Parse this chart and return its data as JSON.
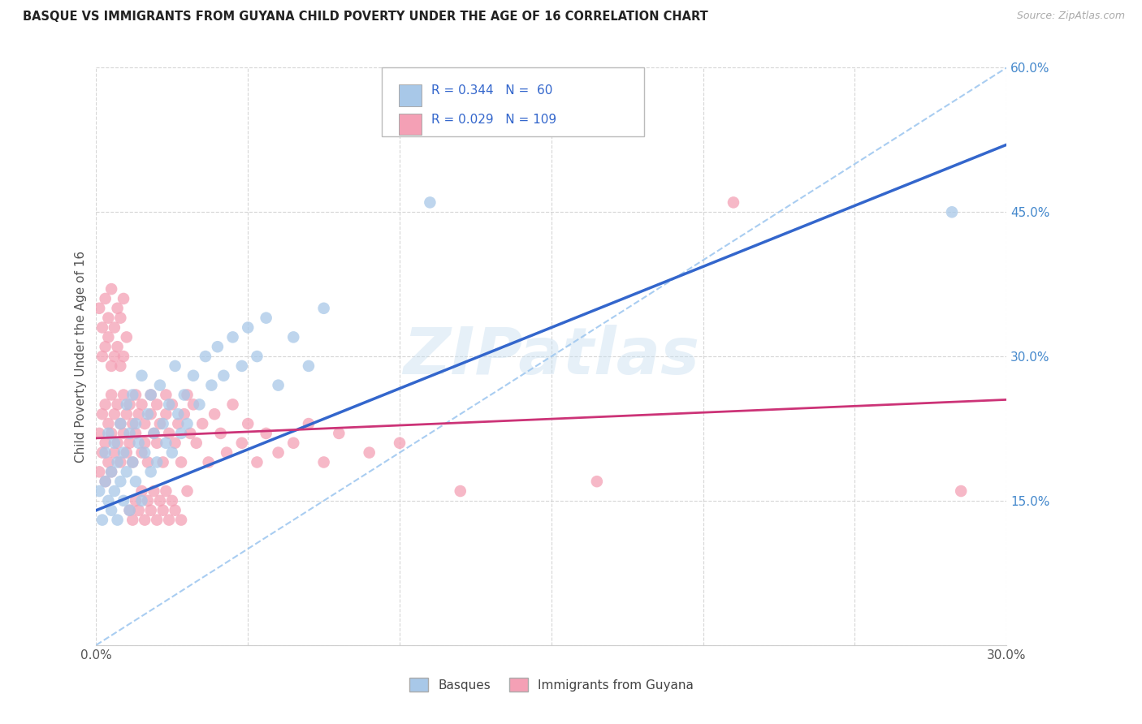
{
  "title": "BASQUE VS IMMIGRANTS FROM GUYANA CHILD POVERTY UNDER THE AGE OF 16 CORRELATION CHART",
  "source": "Source: ZipAtlas.com",
  "ylabel": "Child Poverty Under the Age of 16",
  "xlim": [
    0.0,
    0.3
  ],
  "ylim": [
    0.0,
    0.6
  ],
  "xticks": [
    0.0,
    0.05,
    0.1,
    0.15,
    0.2,
    0.25,
    0.3
  ],
  "yticks": [
    0.0,
    0.15,
    0.3,
    0.45,
    0.6
  ],
  "watermark": "ZIPatlas",
  "blue_R": 0.344,
  "blue_N": 60,
  "pink_R": 0.029,
  "pink_N": 109,
  "blue_color": "#a8c8e8",
  "pink_color": "#f4a0b5",
  "blue_line_color": "#3366cc",
  "pink_line_color": "#cc3377",
  "dashed_line_color": "#a0c8f0",
  "legend_label_blue": "Basques",
  "legend_label_pink": "Immigrants from Guyana",
  "blue_line_x0": 0.0,
  "blue_line_y0": 0.14,
  "blue_line_x1": 0.15,
  "blue_line_y1": 0.33,
  "pink_line_x0": 0.0,
  "pink_line_y0": 0.215,
  "pink_line_x1": 0.3,
  "pink_line_y1": 0.255,
  "blue_scatter_x": [
    0.001,
    0.002,
    0.003,
    0.003,
    0.004,
    0.004,
    0.005,
    0.005,
    0.006,
    0.006,
    0.007,
    0.007,
    0.008,
    0.008,
    0.009,
    0.009,
    0.01,
    0.01,
    0.011,
    0.011,
    0.012,
    0.012,
    0.013,
    0.013,
    0.014,
    0.015,
    0.015,
    0.016,
    0.017,
    0.018,
    0.018,
    0.019,
    0.02,
    0.021,
    0.022,
    0.023,
    0.024,
    0.025,
    0.026,
    0.027,
    0.028,
    0.029,
    0.03,
    0.032,
    0.034,
    0.036,
    0.038,
    0.04,
    0.042,
    0.045,
    0.048,
    0.05,
    0.053,
    0.056,
    0.06,
    0.065,
    0.07,
    0.075,
    0.11,
    0.282
  ],
  "blue_scatter_y": [
    0.16,
    0.13,
    0.17,
    0.2,
    0.15,
    0.22,
    0.14,
    0.18,
    0.16,
    0.21,
    0.13,
    0.19,
    0.17,
    0.23,
    0.15,
    0.2,
    0.18,
    0.25,
    0.14,
    0.22,
    0.19,
    0.26,
    0.17,
    0.23,
    0.21,
    0.15,
    0.28,
    0.2,
    0.24,
    0.18,
    0.26,
    0.22,
    0.19,
    0.27,
    0.23,
    0.21,
    0.25,
    0.2,
    0.29,
    0.24,
    0.22,
    0.26,
    0.23,
    0.28,
    0.25,
    0.3,
    0.27,
    0.31,
    0.28,
    0.32,
    0.29,
    0.33,
    0.3,
    0.34,
    0.27,
    0.32,
    0.29,
    0.35,
    0.46,
    0.45
  ],
  "pink_scatter_x": [
    0.001,
    0.001,
    0.002,
    0.002,
    0.003,
    0.003,
    0.003,
    0.004,
    0.004,
    0.005,
    0.005,
    0.005,
    0.006,
    0.006,
    0.007,
    0.007,
    0.008,
    0.008,
    0.009,
    0.009,
    0.01,
    0.01,
    0.011,
    0.011,
    0.012,
    0.012,
    0.013,
    0.013,
    0.014,
    0.015,
    0.015,
    0.016,
    0.016,
    0.017,
    0.018,
    0.018,
    0.019,
    0.02,
    0.02,
    0.021,
    0.022,
    0.023,
    0.023,
    0.024,
    0.025,
    0.026,
    0.027,
    0.028,
    0.029,
    0.03,
    0.031,
    0.032,
    0.033,
    0.035,
    0.037,
    0.039,
    0.041,
    0.043,
    0.045,
    0.048,
    0.05,
    0.053,
    0.056,
    0.06,
    0.065,
    0.07,
    0.075,
    0.08,
    0.09,
    0.1,
    0.001,
    0.002,
    0.003,
    0.004,
    0.005,
    0.006,
    0.007,
    0.008,
    0.009,
    0.01,
    0.011,
    0.012,
    0.013,
    0.014,
    0.015,
    0.016,
    0.017,
    0.018,
    0.019,
    0.02,
    0.021,
    0.022,
    0.023,
    0.024,
    0.025,
    0.026,
    0.028,
    0.03,
    0.12,
    0.165,
    0.002,
    0.003,
    0.004,
    0.005,
    0.006,
    0.007,
    0.008,
    0.009,
    0.285,
    0.21
  ],
  "pink_scatter_y": [
    0.22,
    0.18,
    0.24,
    0.2,
    0.25,
    0.21,
    0.17,
    0.23,
    0.19,
    0.26,
    0.22,
    0.18,
    0.24,
    0.2,
    0.25,
    0.21,
    0.23,
    0.19,
    0.26,
    0.22,
    0.24,
    0.2,
    0.25,
    0.21,
    0.23,
    0.19,
    0.26,
    0.22,
    0.24,
    0.2,
    0.25,
    0.21,
    0.23,
    0.19,
    0.24,
    0.26,
    0.22,
    0.25,
    0.21,
    0.23,
    0.19,
    0.24,
    0.26,
    0.22,
    0.25,
    0.21,
    0.23,
    0.19,
    0.24,
    0.26,
    0.22,
    0.25,
    0.21,
    0.23,
    0.19,
    0.24,
    0.22,
    0.2,
    0.25,
    0.21,
    0.23,
    0.19,
    0.22,
    0.2,
    0.21,
    0.23,
    0.19,
    0.22,
    0.2,
    0.21,
    0.35,
    0.33,
    0.36,
    0.34,
    0.37,
    0.33,
    0.35,
    0.34,
    0.36,
    0.32,
    0.14,
    0.13,
    0.15,
    0.14,
    0.16,
    0.13,
    0.15,
    0.14,
    0.16,
    0.13,
    0.15,
    0.14,
    0.16,
    0.13,
    0.15,
    0.14,
    0.13,
    0.16,
    0.16,
    0.17,
    0.3,
    0.31,
    0.32,
    0.29,
    0.3,
    0.31,
    0.29,
    0.3,
    0.16,
    0.46
  ]
}
